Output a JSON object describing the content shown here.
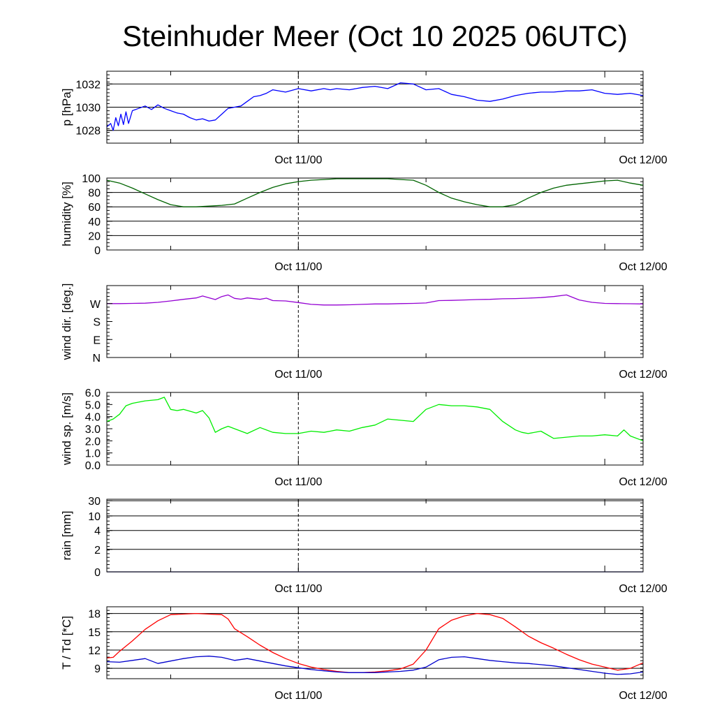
{
  "title": "Steinhuder Meer (Oct 10 2025 06UTC)",
  "x_tick_labels": [
    "Oct 11/00",
    "Oct 12/00"
  ],
  "colors": {
    "pressure": "#0000ff",
    "humidity": "#006400",
    "wind_dir": "#9400d3",
    "wind_speed": "#00ee00",
    "rain": "#00008b",
    "temperature": "#ff0000",
    "dewpoint": "#0000cd"
  },
  "chart_data": [
    {
      "type": "line",
      "ylabel": "p [hPa]",
      "xlim": [
        0,
        42
      ],
      "ylim": [
        1026.9,
        1033.1
      ],
      "y_ticks": [
        1028,
        1030,
        1032
      ],
      "y_tick_labels": [
        "1028",
        "1030",
        "1032"
      ],
      "grid": true,
      "series": [
        {
          "color_key": "pressure",
          "x": [
            0,
            0.3,
            0.5,
            0.7,
            0.9,
            1.1,
            1.3,
            1.5,
            1.7,
            2.0,
            2.5,
            3.0,
            3.5,
            4.0,
            4.5,
            5.0,
            5.5,
            6.0,
            6.5,
            7.0,
            7.5,
            8.0,
            8.5,
            9.0,
            9.5,
            10.0,
            10.5,
            11.0,
            11.5,
            12.0,
            12.5,
            13.0,
            14.0,
            15.0,
            16.0,
            17.0,
            17.5,
            18.0,
            19.0,
            20.0,
            21.0,
            22.0,
            23.0,
            24.0,
            25.0,
            26.0,
            27.0,
            28.0,
            29.0,
            30.0,
            31.0,
            32.0,
            33.0,
            34.0,
            35.0,
            36.0,
            37.0,
            38.0,
            39.0,
            40.0,
            41.0,
            42.0
          ],
          "values": [
            1028.3,
            1028.6,
            1028.0,
            1029.1,
            1028.4,
            1029.4,
            1028.5,
            1029.6,
            1028.6,
            1029.7,
            1029.9,
            1030.1,
            1029.8,
            1030.2,
            1029.9,
            1029.7,
            1029.5,
            1029.4,
            1029.1,
            1028.9,
            1029.0,
            1028.8,
            1028.9,
            1029.4,
            1029.9,
            1030.0,
            1030.1,
            1030.5,
            1030.9,
            1031.0,
            1031.2,
            1031.5,
            1031.3,
            1031.6,
            1031.4,
            1031.6,
            1031.5,
            1031.6,
            1031.5,
            1031.7,
            1031.8,
            1031.6,
            1032.1,
            1032.0,
            1031.5,
            1031.6,
            1031.1,
            1030.9,
            1030.6,
            1030.5,
            1030.7,
            1031.0,
            1031.2,
            1031.3,
            1031.3,
            1031.4,
            1031.4,
            1031.5,
            1031.2,
            1031.1,
            1031.2,
            1031.0
          ]
        }
      ]
    },
    {
      "type": "line",
      "ylabel": "humidity [%]",
      "xlim": [
        0,
        42
      ],
      "ylim": [
        0,
        100
      ],
      "y_ticks": [
        0,
        20,
        40,
        60,
        80,
        100
      ],
      "y_tick_labels": [
        "0",
        "20",
        "40",
        "60",
        "80",
        "100"
      ],
      "grid": true,
      "series": [
        {
          "color_key": "humidity",
          "x": [
            0,
            1,
            2,
            3,
            4,
            5,
            6,
            7,
            8,
            9,
            10,
            11,
            12,
            13,
            14,
            15,
            16,
            17,
            18,
            19,
            20,
            21,
            22,
            23,
            24,
            25,
            26,
            27,
            28,
            29,
            30,
            31,
            32,
            33,
            34,
            35,
            36,
            37,
            38,
            39,
            40,
            41,
            42
          ],
          "values": [
            97,
            93,
            86,
            78,
            70,
            63,
            60,
            60,
            61,
            62,
            64,
            72,
            80,
            87,
            92,
            95,
            97,
            98,
            99,
            99,
            99,
            99,
            99,
            98,
            97,
            90,
            80,
            72,
            67,
            63,
            60,
            60,
            63,
            72,
            80,
            86,
            90,
            92,
            94,
            96,
            97,
            93,
            90
          ]
        }
      ]
    },
    {
      "type": "line",
      "ylabel": "wind dir. [deg.]",
      "xlim": [
        0,
        42
      ],
      "ylim": [
        0,
        360
      ],
      "y_ticks": [
        0,
        90,
        180,
        270
      ],
      "y_tick_labels": [
        "N",
        "E",
        "S",
        "W"
      ],
      "grid": false,
      "series": [
        {
          "color_key": "wind_dir",
          "x": [
            0,
            1,
            2,
            3,
            4,
            5,
            6,
            7,
            7.5,
            8,
            8.5,
            9,
            9.5,
            10,
            10.5,
            11,
            12,
            12.5,
            13,
            14,
            15,
            16,
            17,
            18,
            19,
            20,
            21,
            22,
            23,
            24,
            25,
            26,
            27,
            28,
            29,
            30,
            31,
            32,
            33,
            34,
            35,
            36,
            37,
            38,
            39,
            40,
            41,
            42
          ],
          "values": [
            270,
            270,
            271,
            272,
            276,
            283,
            291,
            298,
            308,
            299,
            290,
            305,
            313,
            296,
            292,
            298,
            291,
            297,
            285,
            283,
            275,
            266,
            263,
            263,
            264,
            266,
            268,
            268,
            270,
            271,
            273,
            285,
            286,
            288,
            290,
            291,
            294,
            295,
            297,
            300,
            305,
            313,
            288,
            276,
            271,
            270,
            269,
            268
          ]
        }
      ]
    },
    {
      "type": "line",
      "ylabel": "wind sp. [m/s]",
      "xlim": [
        0,
        42
      ],
      "ylim": [
        0,
        6
      ],
      "y_ticks": [
        0,
        1,
        2,
        3,
        4,
        5,
        6
      ],
      "y_tick_labels": [
        "0.0",
        "1.0",
        "2.0",
        "3.0",
        "4.0",
        "5.0",
        "6.0"
      ],
      "grid": false,
      "series": [
        {
          "color_key": "wind_speed",
          "x": [
            0,
            0.5,
            1,
            1.5,
            2,
            3,
            4,
            4.5,
            5,
            5.5,
            6,
            7,
            7.5,
            8,
            8.5,
            9,
            9.5,
            10,
            11,
            12,
            13,
            14,
            15,
            16,
            17,
            17.5,
            18,
            19,
            20,
            21,
            22,
            23,
            24,
            25,
            26,
            27,
            28,
            29,
            30,
            31,
            32,
            32.5,
            33,
            34,
            35,
            36,
            37,
            38,
            39,
            40,
            40.5,
            41,
            42
          ],
          "values": [
            3.6,
            3.8,
            4.2,
            4.9,
            5.1,
            5.3,
            5.4,
            5.6,
            4.6,
            4.5,
            4.6,
            4.3,
            4.5,
            3.9,
            2.7,
            3.0,
            3.2,
            3.0,
            2.6,
            3.1,
            2.7,
            2.6,
            2.6,
            2.8,
            2.7,
            2.8,
            2.9,
            2.8,
            3.1,
            3.3,
            3.8,
            3.7,
            3.6,
            4.6,
            5.0,
            4.9,
            4.9,
            4.8,
            4.6,
            3.6,
            2.9,
            2.7,
            2.6,
            2.8,
            2.2,
            2.3,
            2.4,
            2.4,
            2.5,
            2.4,
            2.9,
            2.4,
            2.0
          ]
        }
      ]
    },
    {
      "type": "line",
      "ylabel": "rain [mm]",
      "xlim": [
        0,
        42
      ],
      "ylim": [
        0,
        30
      ],
      "scale": "nonlinear",
      "y_ticks": [
        0,
        2,
        4,
        10,
        30
      ],
      "y_tick_labels": [
        "0",
        "2",
        "4",
        "10",
        "30"
      ],
      "grid": true,
      "series": [
        {
          "color_key": "rain",
          "x": [
            0,
            42
          ],
          "values": [
            0,
            0
          ]
        }
      ]
    },
    {
      "type": "line",
      "ylabel": "T / Td [*C]",
      "xlim": [
        0,
        42
      ],
      "ylim": [
        7.3,
        19.1
      ],
      "y_ticks": [
        9,
        12,
        15,
        18
      ],
      "y_tick_labels": [
        "9",
        "12",
        "15",
        "18"
      ],
      "grid": true,
      "series": [
        {
          "color_key": "temperature",
          "x": [
            0,
            0.5,
            1,
            2,
            3,
            4,
            5,
            6,
            7,
            8,
            9,
            9.5,
            10,
            11,
            12,
            13,
            14,
            15,
            16,
            17,
            18,
            19,
            20,
            21,
            22,
            23,
            24,
            25,
            26,
            27,
            28,
            29,
            30,
            31,
            32,
            33,
            34,
            35,
            36,
            37,
            38,
            39,
            40,
            41,
            42
          ],
          "values": [
            10.7,
            10.8,
            11.8,
            13.5,
            15.4,
            16.8,
            17.8,
            17.9,
            18.0,
            17.9,
            17.8,
            17.1,
            15.5,
            14.2,
            12.8,
            11.6,
            10.6,
            9.8,
            9.2,
            8.8,
            8.5,
            8.3,
            8.3,
            8.4,
            8.6,
            8.9,
            9.7,
            12.0,
            15.5,
            16.9,
            17.6,
            18.0,
            17.8,
            17.2,
            15.8,
            14.3,
            13.2,
            12.3,
            11.3,
            10.4,
            9.7,
            9.2,
            8.7,
            9.0,
            9.9
          ]
        },
        {
          "color_key": "dewpoint",
          "x": [
            0,
            1,
            2,
            3,
            4,
            5,
            6,
            7,
            8,
            9,
            10,
            11,
            12,
            13,
            14,
            15,
            16,
            17,
            18,
            19,
            20,
            21,
            22,
            23,
            24,
            25,
            26,
            27,
            28,
            29,
            30,
            31,
            32,
            33,
            34,
            35,
            36,
            37,
            38,
            39,
            40,
            41,
            42
          ],
          "values": [
            10.1,
            10.0,
            10.3,
            10.6,
            9.8,
            10.2,
            10.6,
            10.9,
            11.0,
            10.8,
            10.3,
            10.6,
            10.2,
            9.8,
            9.4,
            9.1,
            8.8,
            8.6,
            8.4,
            8.3,
            8.3,
            8.3,
            8.4,
            8.5,
            8.7,
            9.2,
            10.4,
            10.8,
            10.9,
            10.6,
            10.3,
            10.1,
            9.9,
            9.8,
            9.6,
            9.4,
            9.1,
            8.8,
            8.5,
            8.2,
            8.0,
            8.1,
            8.4
          ]
        }
      ]
    }
  ]
}
